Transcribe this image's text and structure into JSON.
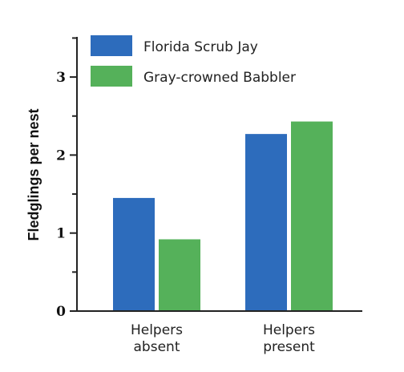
{
  "chart_data": {
    "type": "bar",
    "ylabel": "Fledglings per nest",
    "xlabel": "",
    "ylim": [
      0,
      3.5
    ],
    "yticks_major": [
      0,
      1,
      2,
      3
    ],
    "yticks_minor": [
      0.5,
      1.5,
      2.5,
      3.5
    ],
    "grid": false,
    "legend_position": "top-left",
    "categories": [
      [
        "Helpers",
        "absent"
      ],
      [
        "Helpers",
        "present"
      ]
    ],
    "series": [
      {
        "name": "Florida Scrub Jay",
        "color": "#2d6cbc",
        "values": [
          1.45,
          2.27
        ]
      },
      {
        "name": "Gray-crowned Babbler",
        "color": "#55b15a",
        "values": [
          0.92,
          2.43
        ]
      }
    ]
  }
}
